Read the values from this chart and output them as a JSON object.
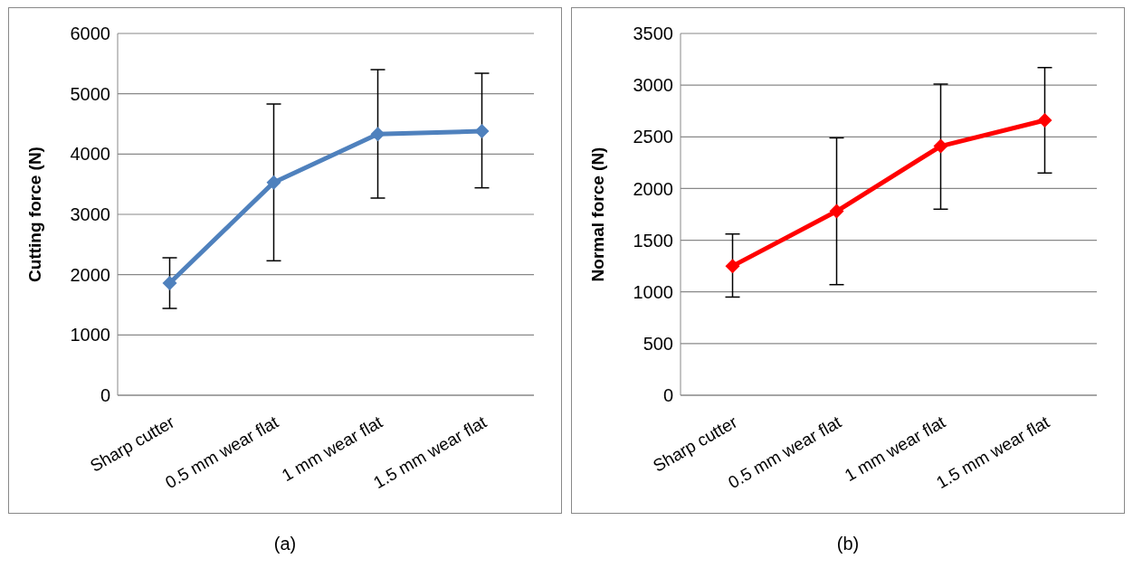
{
  "chart_data": [
    {
      "type": "line",
      "ylabel": "Cutting force (N)",
      "categories": [
        "Sharp cutter",
        "0.5 mm wear flat",
        "1 mm wear flat",
        "1.5 mm wear flat"
      ],
      "series": [
        {
          "color": "#4f81bd",
          "values": [
            1860,
            3530,
            4330,
            4380
          ],
          "errors": [
            [
              1440,
              2280
            ],
            [
              2230,
              4830
            ],
            [
              3270,
              5400
            ],
            [
              3440,
              5340
            ]
          ]
        }
      ],
      "ylim": [
        0,
        6000
      ],
      "yticks": [
        0,
        1000,
        2000,
        3000,
        4000,
        5000,
        6000
      ],
      "grid": "y",
      "legend": false,
      "marker": "diamond",
      "line_style": "solid",
      "annotations": [
        "(a)"
      ]
    },
    {
      "type": "line",
      "ylabel": "Normal force (N)",
      "categories": [
        "Sharp cutter",
        "0.5 mm wear flat",
        "1 mm wear flat",
        "1.5 mm wear flat"
      ],
      "series": [
        {
          "color": "#ff0000",
          "values": [
            1250,
            1780,
            2410,
            2660
          ],
          "errors": [
            [
              950,
              1560
            ],
            [
              1070,
              2490
            ],
            [
              1800,
              3010
            ],
            [
              2150,
              3170
            ]
          ]
        }
      ],
      "ylim": [
        0,
        3500
      ],
      "yticks": [
        0,
        500,
        1000,
        1500,
        2000,
        2500,
        3000,
        3500
      ],
      "grid": "y",
      "legend": false,
      "marker": "diamond",
      "line_style": "solid",
      "annotations": [
        "(b)"
      ]
    }
  ]
}
